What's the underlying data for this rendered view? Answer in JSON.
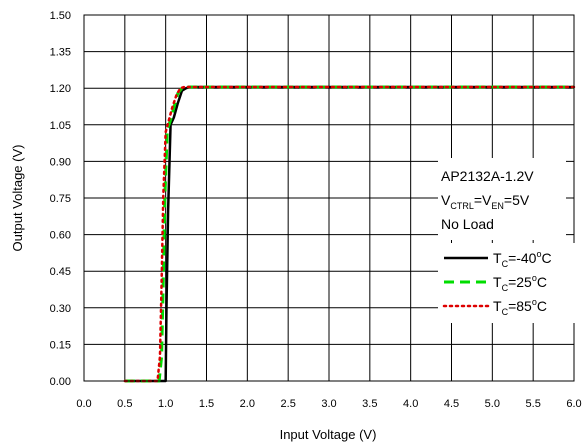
{
  "chart_data": {
    "type": "line",
    "xlabel": "Input Voltage (V)",
    "ylabel": "Output Voltage (V)",
    "xlim": [
      0,
      6
    ],
    "ylim": [
      0,
      1.5
    ],
    "xticks": [
      "0.0",
      "0.5",
      "1.0",
      "1.5",
      "2.0",
      "2.5",
      "3.0",
      "3.5",
      "4.0",
      "4.5",
      "5.0",
      "5.5",
      "6.0"
    ],
    "yticks": [
      "0.00",
      "0.15",
      "0.30",
      "0.45",
      "0.60",
      "0.75",
      "0.90",
      "1.05",
      "1.20",
      "1.35",
      "1.50"
    ],
    "grid": true,
    "annotation": {
      "line1": "AP2132A-1.2V",
      "line2_parts": [
        "V",
        "CTRL",
        "=V",
        "EN",
        "=5V"
      ],
      "line3": "No Load"
    },
    "legend_position": "right",
    "series": [
      {
        "name_parts": [
          "T",
          "C",
          "=-40",
          "o",
          "C"
        ],
        "color": "#000000",
        "style": "solid",
        "x": [
          0.5,
          0.98,
          1.0,
          1.01,
          1.03,
          1.06,
          1.1,
          1.15,
          1.2,
          1.25,
          1.3,
          1.5,
          2.0,
          3.0,
          4.0,
          5.0,
          6.0
        ],
        "y": [
          0.0,
          0.0,
          0.0,
          0.3,
          0.7,
          1.05,
          1.08,
          1.14,
          1.19,
          1.2,
          1.205,
          1.205,
          1.205,
          1.205,
          1.205,
          1.205,
          1.205
        ]
      },
      {
        "name_parts": [
          "T",
          "C",
          "=25",
          "o",
          "C"
        ],
        "color": "#00dd00",
        "style": "dashed",
        "x": [
          0.5,
          0.92,
          0.95,
          0.97,
          0.99,
          1.02,
          1.06,
          1.1,
          1.15,
          1.2,
          1.25,
          1.3,
          1.5,
          2.0,
          3.0,
          4.0,
          5.0,
          6.0
        ],
        "y": [
          0.0,
          0.0,
          0.1,
          0.4,
          0.75,
          1.03,
          1.07,
          1.12,
          1.18,
          1.2,
          1.205,
          1.205,
          1.205,
          1.205,
          1.205,
          1.205,
          1.205,
          1.205
        ]
      },
      {
        "name_parts": [
          "T",
          "C",
          "=85",
          "o",
          "C"
        ],
        "color": "#dd0000",
        "style": "dotted",
        "x": [
          0.5,
          0.9,
          0.93,
          0.95,
          0.97,
          1.0,
          1.04,
          1.08,
          1.13,
          1.18,
          1.23,
          1.3,
          1.5,
          2.0,
          3.0,
          4.0,
          5.0,
          6.0
        ],
        "y": [
          0.0,
          0.0,
          0.1,
          0.4,
          0.75,
          1.02,
          1.07,
          1.12,
          1.17,
          1.2,
          1.205,
          1.205,
          1.205,
          1.205,
          1.205,
          1.205,
          1.205,
          1.205
        ]
      }
    ]
  }
}
